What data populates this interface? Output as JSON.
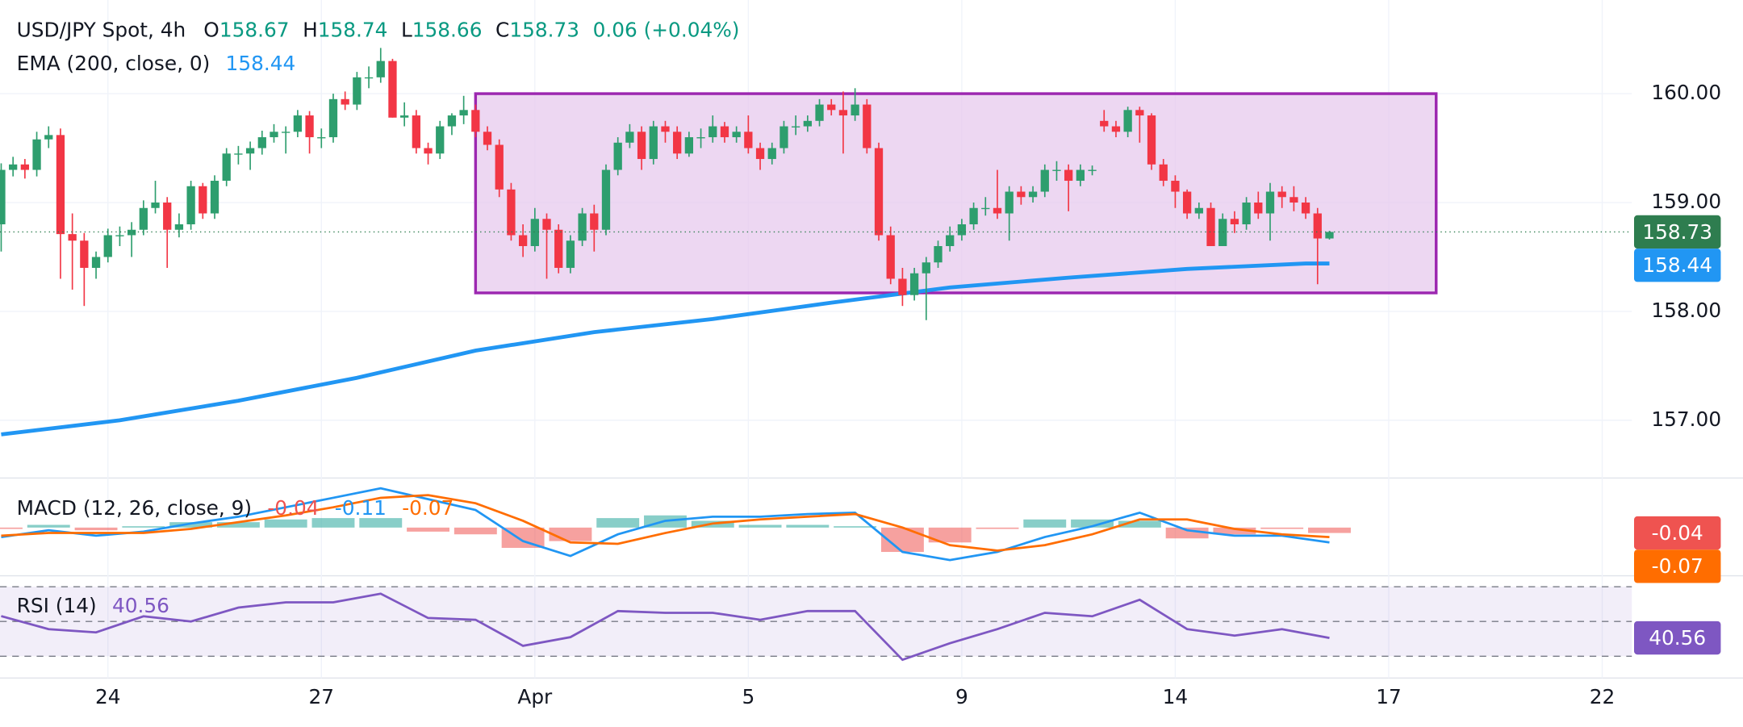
{
  "chart_data": [
    {
      "type": "candlestick",
      "title": "USD/JPY Spot, 4h",
      "ohlc": [
        {
          "label": "O",
          "value": 158.67
        },
        {
          "label": "H",
          "value": 158.74
        },
        {
          "label": "L",
          "value": 158.66
        },
        {
          "label": "C",
          "value": 158.73
        }
      ],
      "change": "0.06 (+0.04%)",
      "header_color": "#089981",
      "up_color": "#2e9e6e",
      "down_color": "#f23645",
      "last_price_color": "#2e7d4f",
      "candles": [
        [
          158.8,
          159.36,
          158.55,
          159.3
        ],
        [
          159.3,
          159.42,
          159.24,
          159.35
        ],
        [
          159.35,
          159.4,
          159.22,
          159.3
        ],
        [
          159.3,
          159.65,
          159.24,
          159.58
        ],
        [
          159.58,
          159.7,
          159.5,
          159.62
        ],
        [
          159.62,
          159.68,
          158.3,
          158.71
        ],
        [
          158.71,
          158.9,
          158.2,
          158.65
        ],
        [
          158.65,
          158.72,
          158.05,
          158.4
        ],
        [
          158.4,
          158.55,
          158.3,
          158.5
        ],
        [
          158.5,
          158.76,
          158.45,
          158.7
        ],
        [
          158.7,
          158.78,
          158.6,
          158.7
        ],
        [
          158.7,
          158.82,
          158.5,
          158.75
        ],
        [
          158.75,
          159.02,
          158.7,
          158.95
        ],
        [
          158.95,
          159.2,
          158.9,
          159.0
        ],
        [
          159.0,
          159.05,
          158.4,
          158.75
        ],
        [
          158.75,
          158.9,
          158.68,
          158.8
        ],
        [
          158.8,
          159.2,
          158.75,
          159.15
        ],
        [
          159.15,
          159.18,
          158.85,
          158.9
        ],
        [
          158.9,
          159.25,
          158.85,
          159.2
        ],
        [
          159.2,
          159.5,
          159.15,
          159.45
        ],
        [
          159.45,
          159.52,
          159.35,
          159.45
        ],
        [
          159.45,
          159.56,
          159.3,
          159.5
        ],
        [
          159.5,
          159.66,
          159.44,
          159.6
        ],
        [
          159.6,
          159.72,
          159.55,
          159.65
        ],
        [
          159.65,
          159.7,
          159.45,
          159.65
        ],
        [
          159.65,
          159.85,
          159.6,
          159.8
        ],
        [
          159.8,
          159.84,
          159.45,
          159.6
        ],
        [
          159.6,
          159.68,
          159.5,
          159.6
        ],
        [
          159.6,
          160.0,
          159.55,
          159.95
        ],
        [
          159.95,
          160.02,
          159.85,
          159.9
        ],
        [
          159.9,
          160.2,
          159.85,
          160.15
        ],
        [
          160.15,
          160.25,
          160.05,
          160.15
        ],
        [
          160.15,
          160.42,
          160.1,
          160.3
        ],
        [
          160.3,
          160.32,
          159.78,
          159.78
        ],
        [
          159.78,
          159.92,
          159.7,
          159.8
        ],
        [
          159.8,
          159.85,
          159.45,
          159.5
        ],
        [
          159.5,
          159.55,
          159.35,
          159.45
        ],
        [
          159.45,
          159.75,
          159.4,
          159.7
        ],
        [
          159.7,
          159.82,
          159.62,
          159.8
        ],
        [
          159.8,
          159.98,
          159.72,
          159.85
        ],
        [
          159.85,
          159.9,
          159.6,
          159.65
        ],
        [
          159.65,
          159.7,
          159.48,
          159.53
        ],
        [
          159.53,
          159.58,
          159.05,
          159.12
        ],
        [
          159.12,
          159.18,
          158.65,
          158.7
        ],
        [
          158.7,
          158.8,
          158.5,
          158.6
        ],
        [
          158.6,
          158.95,
          158.55,
          158.85
        ],
        [
          158.85,
          158.9,
          158.3,
          158.75
        ],
        [
          158.75,
          158.8,
          158.35,
          158.4
        ],
        [
          158.4,
          158.7,
          158.35,
          158.65
        ],
        [
          158.65,
          158.95,
          158.6,
          158.9
        ],
        [
          158.9,
          158.98,
          158.55,
          158.75
        ],
        [
          158.75,
          159.35,
          158.7,
          159.3
        ],
        [
          159.3,
          159.6,
          159.25,
          159.55
        ],
        [
          159.55,
          159.72,
          159.5,
          159.65
        ],
        [
          159.65,
          159.7,
          159.3,
          159.4
        ],
        [
          159.4,
          159.75,
          159.35,
          159.7
        ],
        [
          159.7,
          159.75,
          159.55,
          159.65
        ],
        [
          159.65,
          159.7,
          159.4,
          159.45
        ],
        [
          159.45,
          159.65,
          159.42,
          159.6
        ],
        [
          159.6,
          159.68,
          159.5,
          159.6
        ],
        [
          159.6,
          159.8,
          159.55,
          159.7
        ],
        [
          159.7,
          159.74,
          159.55,
          159.6
        ],
        [
          159.6,
          159.7,
          159.55,
          159.65
        ],
        [
          159.65,
          159.8,
          159.45,
          159.5
        ],
        [
          159.5,
          159.55,
          159.3,
          159.4
        ],
        [
          159.4,
          159.55,
          159.35,
          159.5
        ],
        [
          159.5,
          159.75,
          159.45,
          159.7
        ],
        [
          159.7,
          159.8,
          159.62,
          159.7
        ],
        [
          159.7,
          159.8,
          159.65,
          159.75
        ],
        [
          159.75,
          159.95,
          159.7,
          159.9
        ],
        [
          159.9,
          159.95,
          159.8,
          159.85
        ],
        [
          159.85,
          160.02,
          159.45,
          159.8
        ],
        [
          159.8,
          160.05,
          159.75,
          159.9
        ],
        [
          159.9,
          159.95,
          159.45,
          159.5
        ],
        [
          159.5,
          159.55,
          158.65,
          158.7
        ],
        [
          158.7,
          158.78,
          158.25,
          158.3
        ],
        [
          158.3,
          158.4,
          158.05,
          158.15
        ],
        [
          158.15,
          158.4,
          158.1,
          158.35
        ],
        [
          158.35,
          158.5,
          157.92,
          158.45
        ],
        [
          158.45,
          158.65,
          158.4,
          158.6
        ],
        [
          158.6,
          158.78,
          158.55,
          158.7
        ],
        [
          158.7,
          158.85,
          158.65,
          158.8
        ],
        [
          158.8,
          159.0,
          158.75,
          158.95
        ],
        [
          158.95,
          159.05,
          158.88,
          158.95
        ],
        [
          158.95,
          159.3,
          158.85,
          158.9
        ],
        [
          158.9,
          159.15,
          158.65,
          159.1
        ],
        [
          159.1,
          159.15,
          158.98,
          159.05
        ],
        [
          159.05,
          159.15,
          159.0,
          159.1
        ],
        [
          159.1,
          159.35,
          159.05,
          159.3
        ],
        [
          159.3,
          159.38,
          159.2,
          159.3
        ],
        [
          159.3,
          159.35,
          158.92,
          159.2
        ],
        [
          159.2,
          159.35,
          159.15,
          159.3
        ],
        [
          159.3,
          159.34,
          159.25,
          159.3
        ],
        [
          159.75,
          159.85,
          159.65,
          159.7
        ],
        [
          159.7,
          159.75,
          159.6,
          159.65
        ],
        [
          159.65,
          159.88,
          159.6,
          159.85
        ],
        [
          159.85,
          159.88,
          159.55,
          159.8
        ],
        [
          159.8,
          159.82,
          159.3,
          159.35
        ],
        [
          159.35,
          159.4,
          159.15,
          159.2
        ],
        [
          159.2,
          159.25,
          158.95,
          159.1
        ],
        [
          159.1,
          159.12,
          158.85,
          158.9
        ],
        [
          158.9,
          159.0,
          158.85,
          158.95
        ],
        [
          158.95,
          159.0,
          158.6,
          158.6
        ],
        [
          158.6,
          158.9,
          158.6,
          158.85
        ],
        [
          158.85,
          158.92,
          158.72,
          158.8
        ],
        [
          158.8,
          159.05,
          158.75,
          159.0
        ],
        [
          159.0,
          159.1,
          158.85,
          158.9
        ],
        [
          158.9,
          159.18,
          158.65,
          159.1
        ],
        [
          159.1,
          159.15,
          158.95,
          159.05
        ],
        [
          159.05,
          159.15,
          158.92,
          159.0
        ],
        [
          159.0,
          159.05,
          158.85,
          158.9
        ],
        [
          158.9,
          158.95,
          158.25,
          158.67
        ],
        [
          158.67,
          158.74,
          158.66,
          158.73
        ]
      ],
      "ema": {
        "name": "EMA (200, close, 0)",
        "color": "#2196f3",
        "x": [
          0,
          10,
          20,
          30,
          40,
          50,
          60,
          70,
          80,
          90,
          100,
          110,
          112
        ],
        "values": [
          156.87,
          157.0,
          157.18,
          157.39,
          157.64,
          157.81,
          157.93,
          158.08,
          158.22,
          158.31,
          158.39,
          158.44,
          158.44
        ]
      },
      "box": {
        "x": [
          40,
          121
        ],
        "y": [
          158.17,
          160.0
        ],
        "color": "#9c27b0",
        "fill": "#e7c9ee"
      },
      "xlim": [
        -0.1,
        137.5
      ],
      "xticks": [
        {
          "value": 9,
          "label": "24"
        },
        {
          "value": 27,
          "label": "27"
        },
        {
          "value": 45,
          "label": "Apr"
        },
        {
          "value": 63,
          "label": "5"
        },
        {
          "value": 81,
          "label": "9"
        },
        {
          "value": 99,
          "label": "14"
        },
        {
          "value": 117,
          "label": "17"
        },
        {
          "value": 135,
          "label": "22"
        }
      ],
      "ylim": [
        156.47,
        160.86
      ],
      "yticks": [
        {
          "value": 157,
          "label": "157.00"
        },
        {
          "value": 158,
          "label": "158.00"
        },
        {
          "value": 159,
          "label": "159.00"
        },
        {
          "value": 160,
          "label": "160.00"
        }
      ],
      "grid": true
    },
    {
      "type": "macd",
      "title": "MACD (12, 26, close, 9)",
      "x": [
        0,
        4,
        8,
        12,
        16,
        20,
        24,
        28,
        32,
        36,
        40,
        44,
        48,
        52,
        56,
        60,
        64,
        68,
        72,
        76,
        80,
        84,
        88,
        92,
        96,
        100,
        104,
        108,
        112
      ],
      "series": [
        {
          "color": "#2196f3",
          "values": [
            -0.07,
            -0.02,
            -0.06,
            -0.03,
            0.03,
            0.08,
            0.15,
            0.22,
            0.29,
            0.21,
            0.13,
            -0.1,
            -0.21,
            -0.05,
            0.05,
            0.08,
            0.08,
            0.1,
            0.11,
            -0.18,
            -0.24,
            -0.18,
            -0.07,
            0.01,
            0.11,
            -0.02,
            -0.06,
            -0.06,
            -0.11
          ]
        },
        {
          "color": "#ff6d00",
          "values": [
            -0.06,
            -0.04,
            -0.04,
            -0.04,
            -0.01,
            0.04,
            0.09,
            0.15,
            0.22,
            0.24,
            0.18,
            0.05,
            -0.11,
            -0.12,
            -0.04,
            0.03,
            0.06,
            0.08,
            0.1,
            0.0,
            -0.13,
            -0.17,
            -0.13,
            -0.05,
            0.06,
            0.06,
            -0.01,
            -0.05,
            -0.07
          ]
        }
      ],
      "histogram": {
        "up_color": "#26a69a",
        "down_color": "#ef5350",
        "values": [
          -0.01,
          0.02,
          -0.02,
          0.01,
          0.04,
          0.04,
          0.06,
          0.07,
          0.07,
          -0.03,
          -0.05,
          -0.15,
          -0.1,
          0.07,
          0.09,
          0.05,
          0.02,
          0.02,
          0.01,
          -0.18,
          -0.11,
          -0.01,
          0.06,
          0.06,
          0.05,
          -0.08,
          -0.05,
          -0.01,
          -0.04
        ]
      },
      "ylim": [
        -0.34,
        0.35
      ]
    },
    {
      "type": "rsi",
      "title": "RSI (14)",
      "color": "#7e57c2",
      "x": [
        0,
        4,
        8,
        12,
        16,
        20,
        24,
        28,
        32,
        36,
        40,
        44,
        48,
        52,
        56,
        60,
        64,
        68,
        72,
        76,
        80,
        84,
        88,
        92,
        96,
        100,
        104,
        108,
        112
      ],
      "values": [
        53.1,
        45.6,
        43.75,
        53,
        50,
        58,
        61,
        61,
        66,
        52,
        51,
        36,
        41,
        56,
        55,
        55,
        51,
        56,
        56,
        28,
        37.5,
        45.6,
        55,
        53,
        62.5,
        45.6,
        41.9,
        45.6,
        40.56
      ],
      "levels": [
        70,
        50,
        30
      ],
      "ylim": [
        18.75,
        75
      ]
    }
  ]
}
